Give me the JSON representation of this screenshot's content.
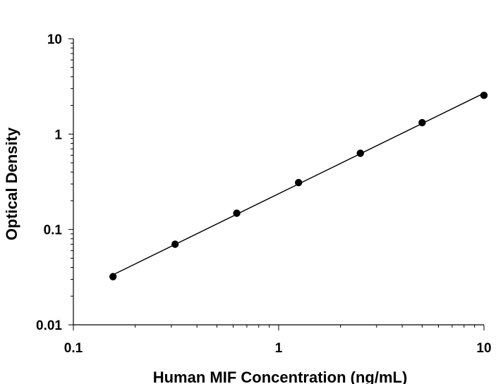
{
  "chart_data": {
    "type": "scatter",
    "title": "",
    "xlabel": "Human MIF Concentration (ng/mL)",
    "ylabel": "Optical Density",
    "x_scale": "log",
    "y_scale": "log",
    "xlim": [
      0.1,
      10
    ],
    "ylim": [
      0.01,
      10
    ],
    "x_ticks": [
      "0.1",
      "1",
      "10"
    ],
    "y_ticks": [
      "0.01",
      "0.1",
      "1",
      "10"
    ],
    "grid": false,
    "legend": "none",
    "series": [
      {
        "x": [
          0.156,
          0.313,
          0.625,
          1.25,
          2.5,
          5,
          10
        ],
        "y": [
          0.032,
          0.07,
          0.148,
          0.31,
          0.63,
          1.32,
          2.55
        ],
        "marker": "filled-circle",
        "color": "#000000",
        "fit_line": true
      }
    ]
  }
}
